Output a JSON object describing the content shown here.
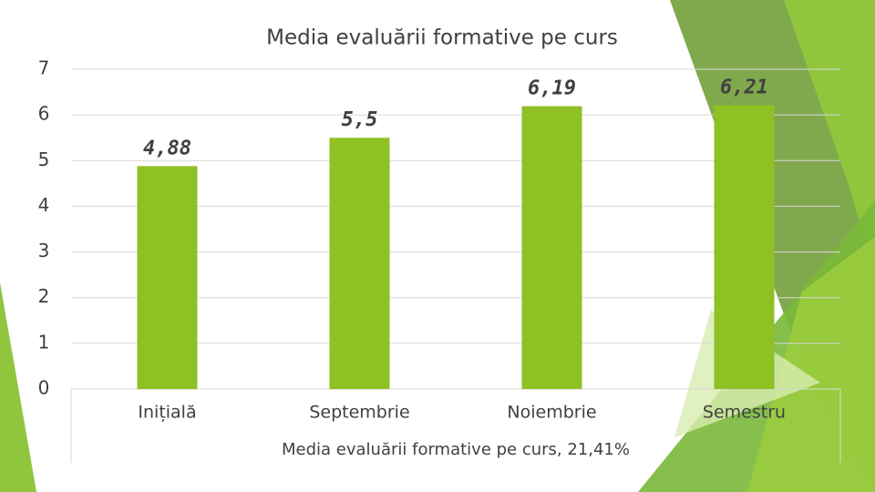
{
  "chart_data": {
    "type": "bar",
    "title": "Media evaluării formative pe curs",
    "categories": [
      "Inițială",
      "Septembrie",
      "Noiembrie",
      "Semestru"
    ],
    "values": [
      4.88,
      5.5,
      6.19,
      6.21
    ],
    "value_labels": [
      "4,88",
      "5,5",
      "6,19",
      "6,21"
    ],
    "x_label": "Media evaluării formative pe curs, 21,41%",
    "color": "#8fc024",
    "ylim": [
      0,
      7
    ],
    "yticks": [
      0,
      1,
      2,
      3,
      4,
      5,
      6,
      7
    ],
    "grid": true
  }
}
